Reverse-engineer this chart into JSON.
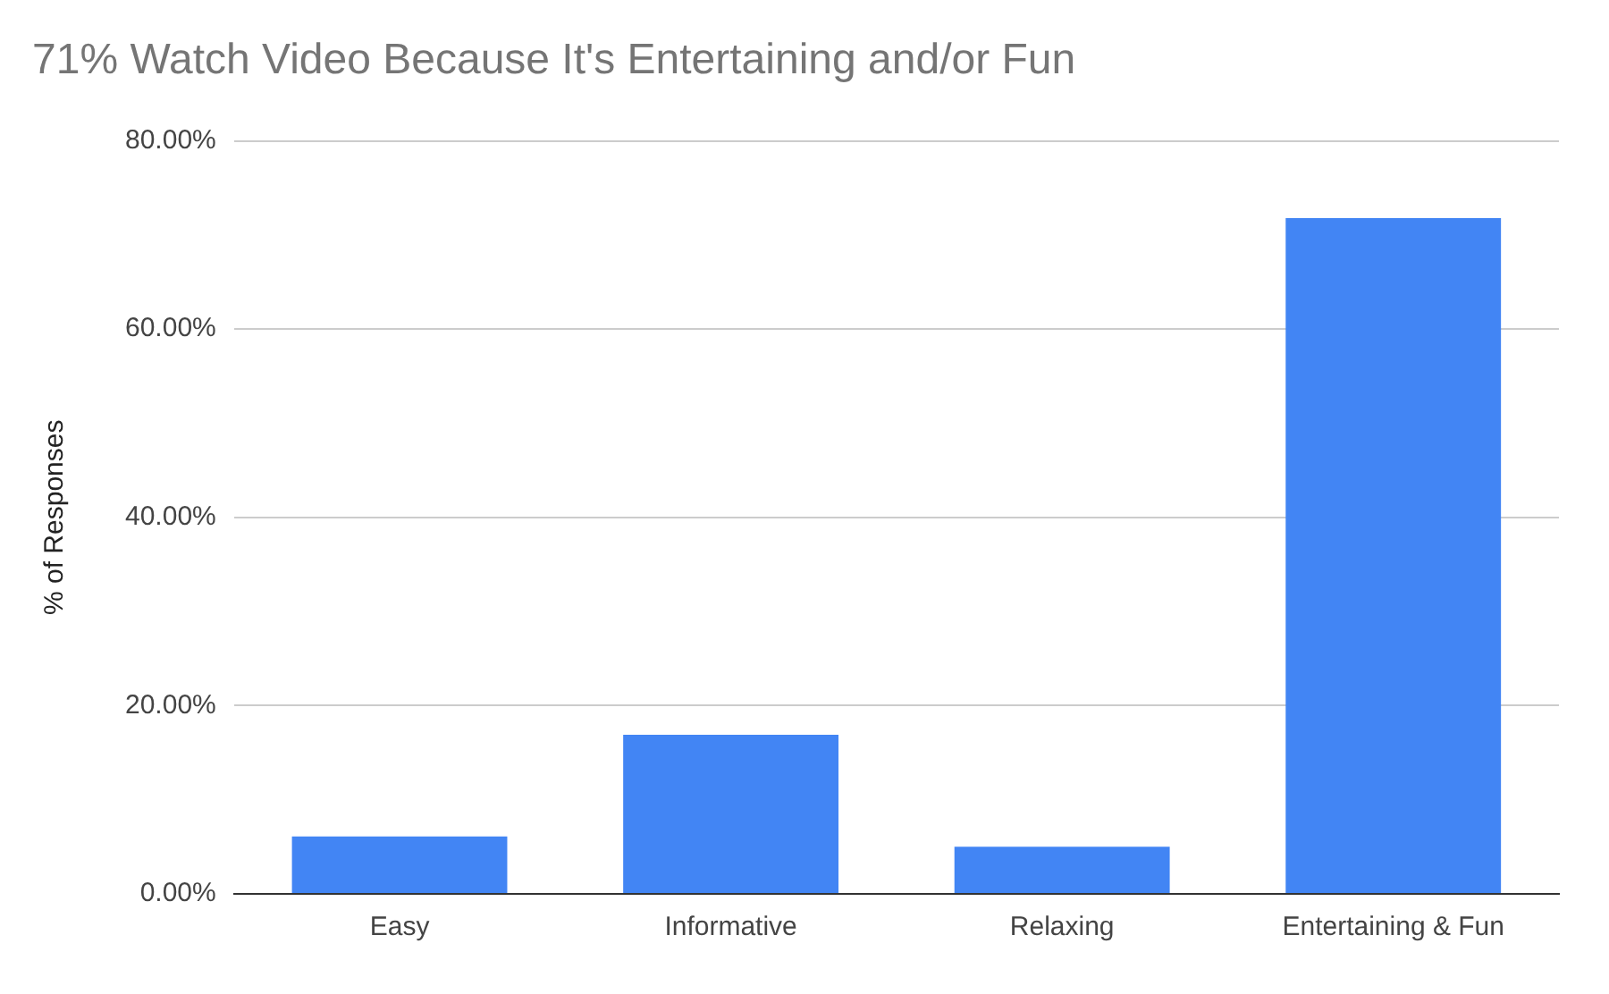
{
  "chart_data": {
    "type": "bar",
    "title": "71% Watch Video Because It's Entertaining and/or Fun",
    "ylabel": "% of Responses",
    "categories": [
      "Easy",
      "Informative",
      "Relaxing",
      "Entertaining & Fun"
    ],
    "values": [
      6.1,
      16.9,
      5.0,
      71.8
    ],
    "color": "#4285f4",
    "ylim": [
      0,
      80
    ],
    "yticks": [
      {
        "value": 0,
        "label": "0.00%"
      },
      {
        "value": 20,
        "label": "20.00%"
      },
      {
        "value": 40,
        "label": "40.00%"
      },
      {
        "value": 60,
        "label": "60.00%"
      },
      {
        "value": 80,
        "label": "80.00%"
      }
    ],
    "grid": "y"
  }
}
